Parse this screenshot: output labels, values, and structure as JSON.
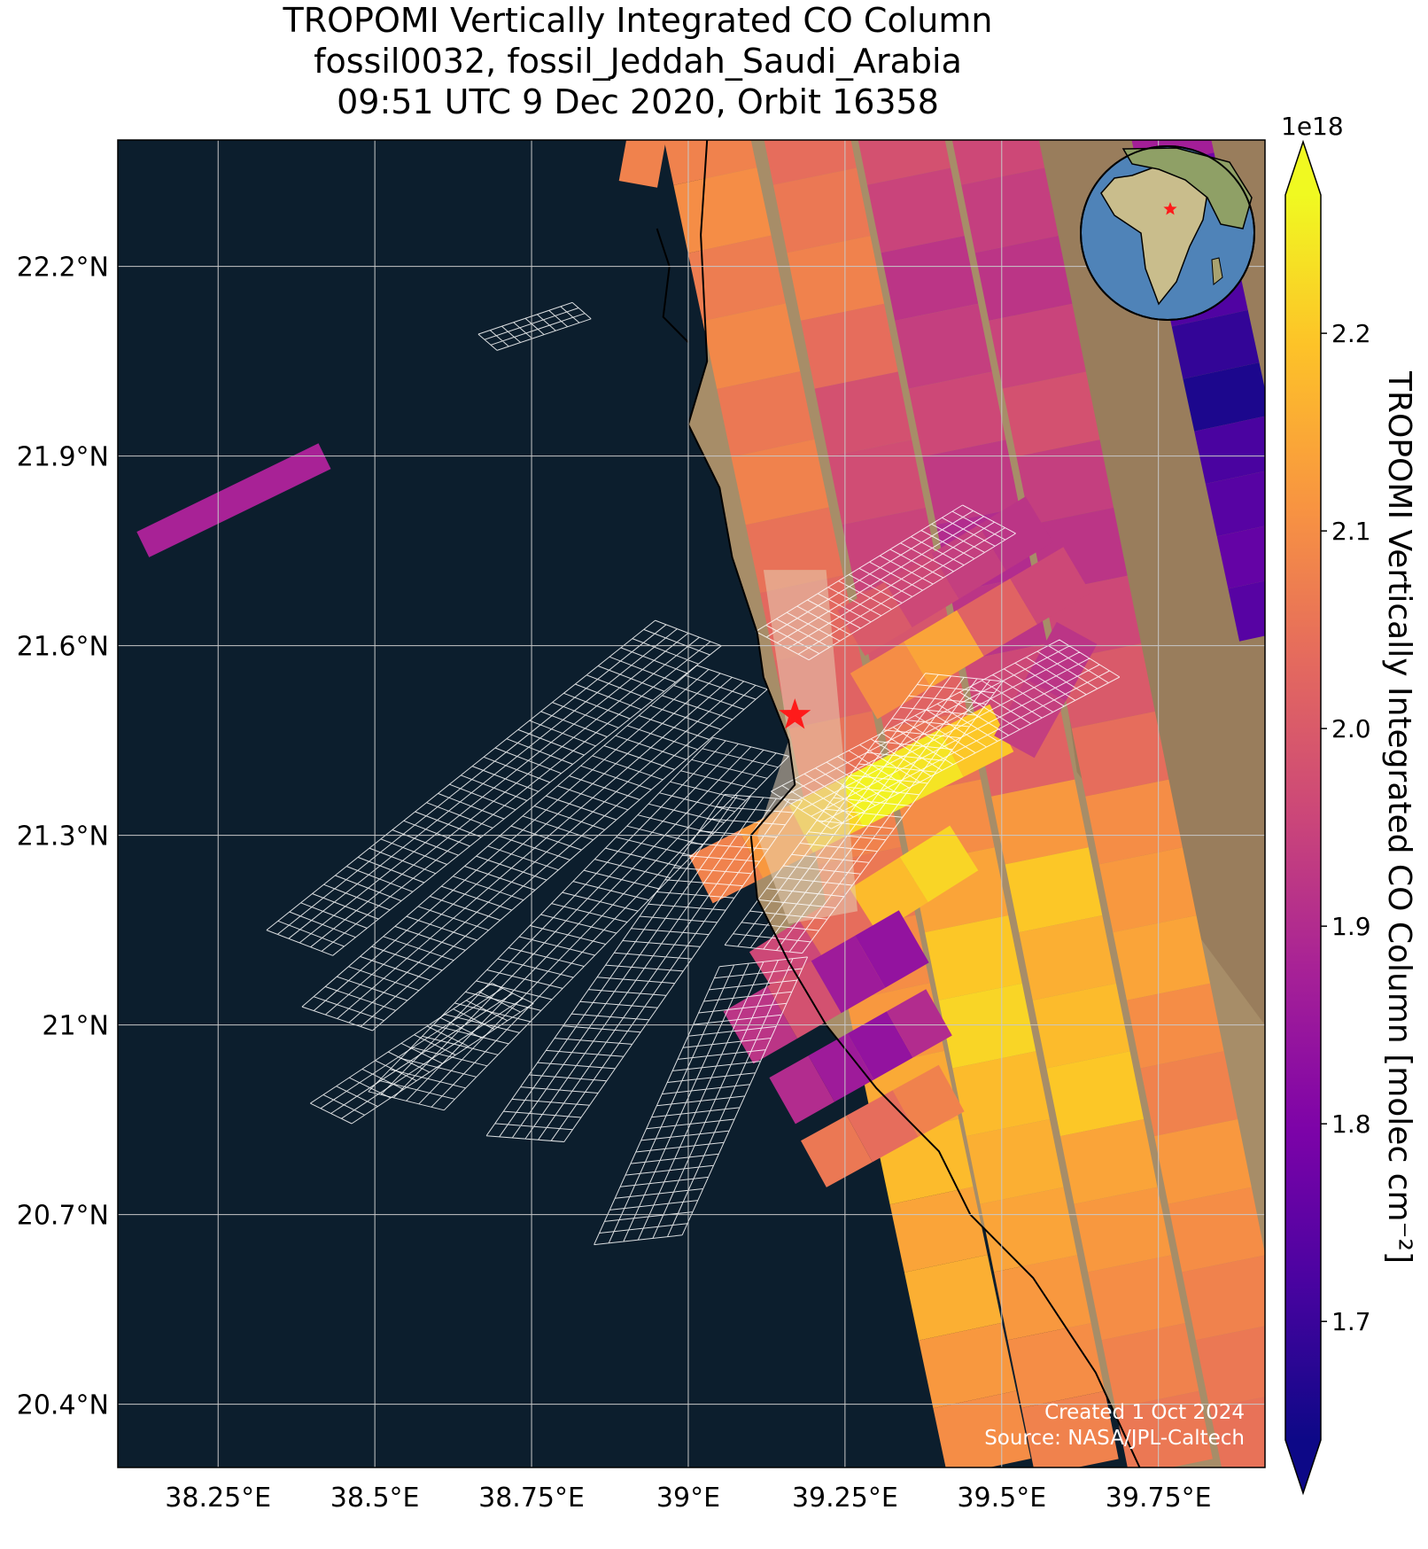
{
  "title": {
    "line1": "TROPOMI Vertically Integrated CO Column",
    "line2": "fossil0032, fossil_Jeddah_Saudi_Arabia",
    "line3": "09:51 UTC 9 Dec 2020, Orbit 16358"
  },
  "map": {
    "lon_range": [
      38.09,
      39.92
    ],
    "lat_range": [
      20.3,
      22.4
    ],
    "lon_ticks": [
      {
        "value": 38.25,
        "label": "38.25°E"
      },
      {
        "value": 38.5,
        "label": "38.5°E"
      },
      {
        "value": 38.75,
        "label": "38.75°E"
      },
      {
        "value": 39.0,
        "label": "39°E"
      },
      {
        "value": 39.25,
        "label": "39.25°E"
      },
      {
        "value": 39.5,
        "label": "39.5°E"
      },
      {
        "value": 39.75,
        "label": "39.75°E"
      }
    ],
    "lat_ticks": [
      {
        "value": 20.4,
        "label": "20.4°N"
      },
      {
        "value": 20.7,
        "label": "20.7°N"
      },
      {
        "value": 21.0,
        "label": "21°N"
      },
      {
        "value": 21.3,
        "label": "21.3°N"
      },
      {
        "value": 21.6,
        "label": "21.6°N"
      },
      {
        "value": 21.9,
        "label": "21.9°N"
      },
      {
        "value": 22.2,
        "label": "22.2°N"
      }
    ],
    "grid": true,
    "colors": {
      "sea": "#0c1e2d",
      "land": "#a78d68",
      "coast": "#000000",
      "target": "#ff1a1a"
    },
    "target": {
      "lon": 39.17,
      "lat": 21.49
    }
  },
  "colorbar": {
    "label": "TROPOMI Vertically Integrated CO Column [molec cm⁻²]",
    "exponent": "1e18",
    "range": [
      1.64,
      2.27
    ],
    "ticks": [
      {
        "value": 1.7,
        "label": "1.7"
      },
      {
        "value": 1.8,
        "label": "1.8"
      },
      {
        "value": 1.9,
        "label": "1.9"
      },
      {
        "value": 2.0,
        "label": "2.0"
      },
      {
        "value": 2.1,
        "label": "2.1"
      },
      {
        "value": 2.2,
        "label": "2.2"
      }
    ],
    "colormap": "plasma",
    "extend": "both"
  },
  "footer": {
    "created": "Created 1 Oct 2024",
    "source": "Source: NASA/JPL-Caltech"
  }
}
